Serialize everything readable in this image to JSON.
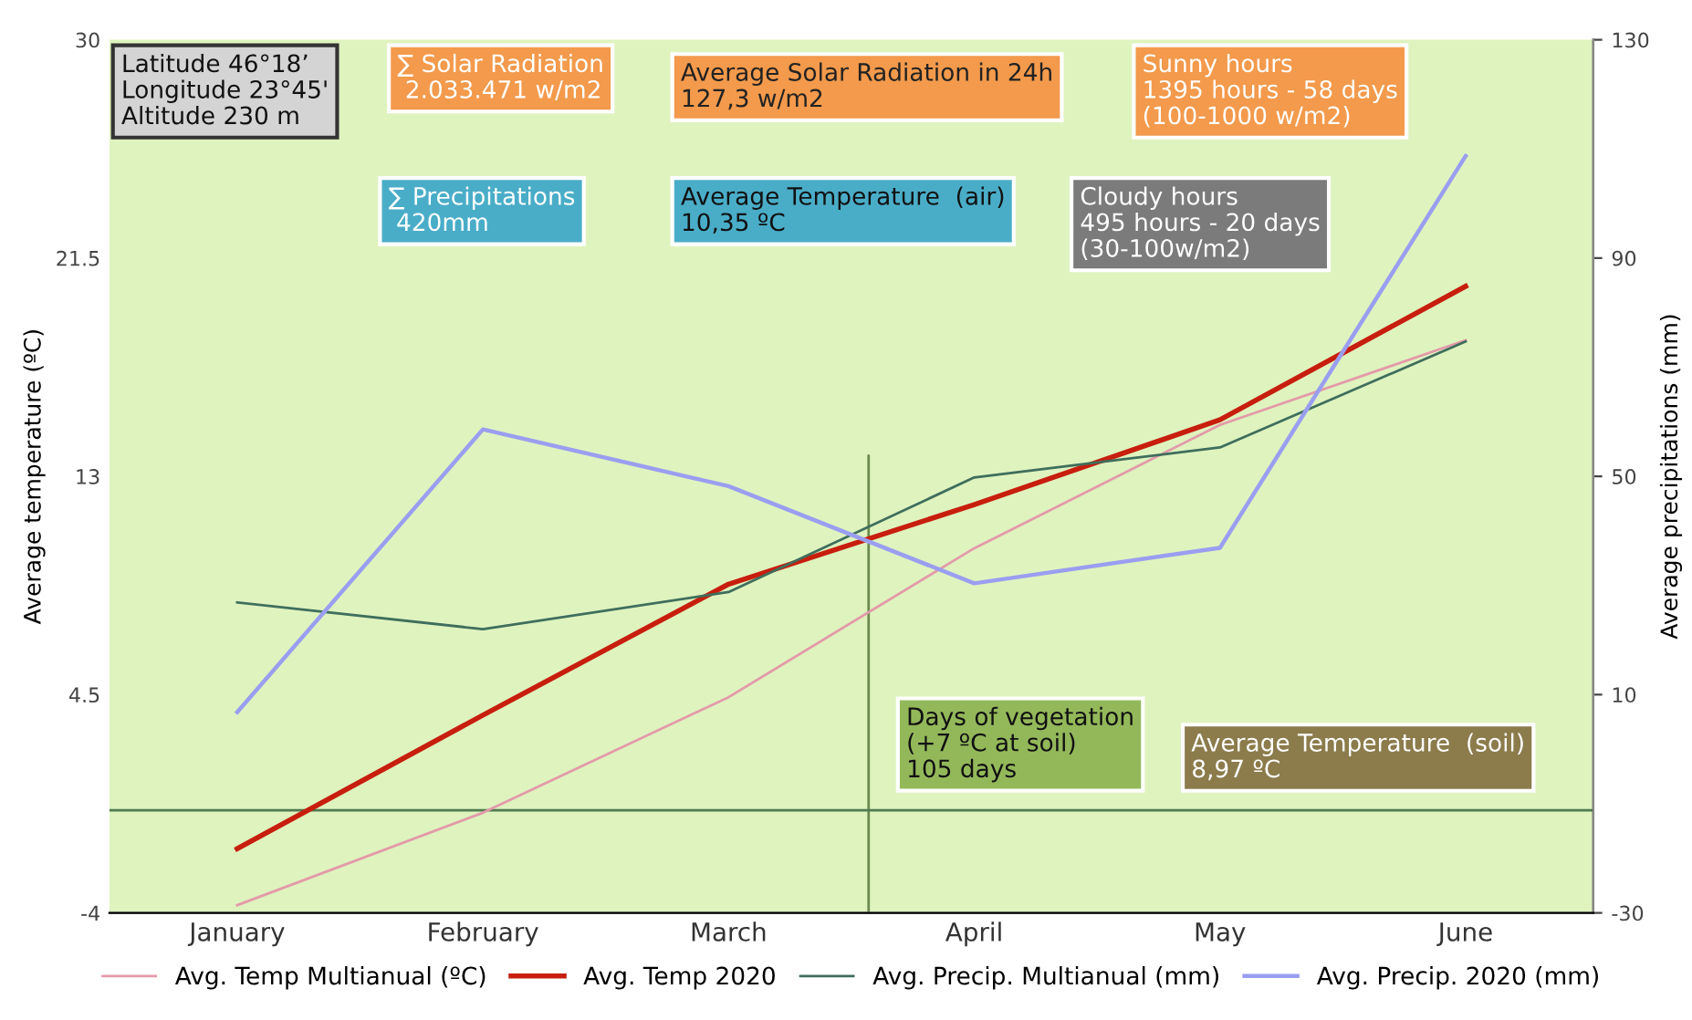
{
  "chart_data": {
    "type": "line",
    "categories": [
      "January",
      "February",
      "March",
      "April",
      "May",
      "June"
    ],
    "ylabel": "Average temperature (ºC)",
    "y2label": "Average precipitations (mm)",
    "ylim": [
      -4,
      30
    ],
    "yticks": [
      -4,
      4.5,
      13,
      21.5,
      30
    ],
    "y2lim": [
      -30,
      130
    ],
    "y2ticks": [
      -30,
      10,
      50,
      90,
      130
    ],
    "grid": false,
    "legend": "bottom",
    "marker": "none",
    "line_style": "solid",
    "series": [
      {
        "name": "Avg. Temp Multianual (ºC)",
        "color": "#e39aa8",
        "values": [
          -3.7,
          -0.1,
          4.4,
          10.2,
          15.0,
          18.3
        ]
      },
      {
        "name": "Avg. Temp 2020",
        "color": "#c81e0e",
        "values": [
          -1.5,
          3.7,
          8.8,
          11.9,
          15.2,
          20.4
        ]
      },
      {
        "name": "Avg. Precip. Multianual (mm)",
        "color": "#3f6e5c",
        "axis": "y2",
        "values": [
          26.9,
          22,
          28.8,
          49.8,
          55.3,
          74.7
        ]
      },
      {
        "name": "Avg. Precip. 2020 (mm)",
        "color": "#9a9ef0",
        "axis": "y2",
        "values": [
          6.8,
          58.6,
          48.2,
          30.4,
          36.9,
          108.7
        ]
      }
    ],
    "ref_lines": [
      {
        "axis": "y",
        "value": 0,
        "color": "#4f7a4f"
      }
    ],
    "annotations": [
      "Latitude 46°18’\nLongitude 23°45'\nAltitude 230 m",
      "∑ Solar Radiation\n 2.033.471 w/m2",
      "Average Solar Radiation in 24h\n127,3 w/m2",
      "Sunny hours\n1395 hours - 58 days\n(100-1000 w/m2)",
      "∑ Precipitations\n 420mm",
      "Average Temperature  (air)\n10,35 ºC",
      "Cloudy hours\n495 hours - 20 days\n(30-100w/m2)",
      "Days of vegetation\n(+7 ºC at soil)\n105 days",
      "Average Temperature  (soil)\n8,97 ºC"
    ]
  }
}
